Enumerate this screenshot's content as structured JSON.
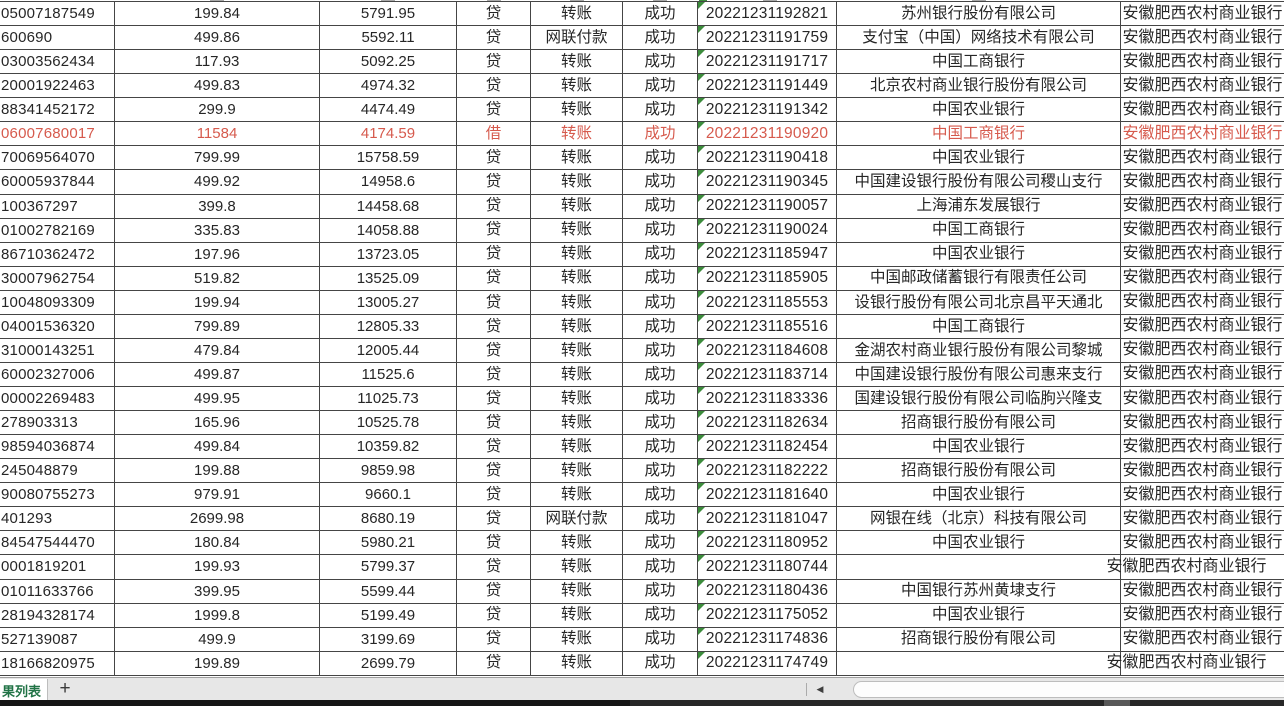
{
  "colors": {
    "text": "#262626",
    "highlight_red": "#d65a4d",
    "gridline": "#454545",
    "cell_flag_triangle_green": "#3c8c3c",
    "sheet_tab_green": "#217346"
  },
  "own_bank_repeated_value": "安徽肥西农村商业银行",
  "table": {
    "rows": [
      {
        "account": "05007187549",
        "amount": "199.84",
        "balance": "5791.95",
        "direction": "贷",
        "method": "转账",
        "status": "成功",
        "time": "20221231192821",
        "bank": "苏州银行股份有限公司",
        "own_bank": "安徽肥西农村商业银行",
        "red": false
      },
      {
        "account": "600690",
        "amount": "499.86",
        "balance": "5592.11",
        "direction": "贷",
        "method": "网联付款",
        "status": "成功",
        "time": "20221231191759",
        "bank": "支付宝（中国）网络技术有限公司",
        "own_bank": "安徽肥西农村商业银行",
        "red": false
      },
      {
        "account": "03003562434",
        "amount": "117.93",
        "balance": "5092.25",
        "direction": "贷",
        "method": "转账",
        "status": "成功",
        "time": "20221231191717",
        "bank": "中国工商银行",
        "own_bank": "安徽肥西农村商业银行",
        "red": false
      },
      {
        "account": "20001922463",
        "amount": "499.83",
        "balance": "4974.32",
        "direction": "贷",
        "method": "转账",
        "status": "成功",
        "time": "20221231191449",
        "bank": "北京农村商业银行股份有限公司",
        "own_bank": "安徽肥西农村商业银行",
        "red": false
      },
      {
        "account": "88341452172",
        "amount": "299.9",
        "balance": "4474.49",
        "direction": "贷",
        "method": "转账",
        "status": "成功",
        "time": "20221231191342",
        "bank": "中国农业银行",
        "own_bank": "安徽肥西农村商业银行",
        "red": false
      },
      {
        "account": "06007680017",
        "amount": "11584",
        "balance": "4174.59",
        "direction": "借",
        "method": "转账",
        "status": "成功",
        "time": "20221231190920",
        "bank": "中国工商银行",
        "own_bank": "安徽肥西农村商业银行",
        "red": true
      },
      {
        "account": "70069564070",
        "amount": "799.99",
        "balance": "15758.59",
        "direction": "贷",
        "method": "转账",
        "status": "成功",
        "time": "20221231190418",
        "bank": "中国农业银行",
        "own_bank": "安徽肥西农村商业银行",
        "red": false
      },
      {
        "account": "60005937844",
        "amount": "499.92",
        "balance": "14958.6",
        "direction": "贷",
        "method": "转账",
        "status": "成功",
        "time": "20221231190345",
        "bank": "中国建设银行股份有限公司稷山支行",
        "own_bank": "安徽肥西农村商业银行",
        "red": false
      },
      {
        "account": "100367297",
        "amount": "399.8",
        "balance": "14458.68",
        "direction": "贷",
        "method": "转账",
        "status": "成功",
        "time": "20221231190057",
        "bank": "上海浦东发展银行",
        "own_bank": "安徽肥西农村商业银行",
        "red": false
      },
      {
        "account": "01002782169",
        "amount": "335.83",
        "balance": "14058.88",
        "direction": "贷",
        "method": "转账",
        "status": "成功",
        "time": "20221231190024",
        "bank": "中国工商银行",
        "own_bank": "安徽肥西农村商业银行",
        "red": false
      },
      {
        "account": "86710362472",
        "amount": "197.96",
        "balance": "13723.05",
        "direction": "贷",
        "method": "转账",
        "status": "成功",
        "time": "20221231185947",
        "bank": "中国农业银行",
        "own_bank": "安徽肥西农村商业银行",
        "red": false
      },
      {
        "account": "30007962754",
        "amount": "519.82",
        "balance": "13525.09",
        "direction": "贷",
        "method": "转账",
        "status": "成功",
        "time": "20221231185905",
        "bank": "中国邮政储蓄银行有限责任公司",
        "own_bank": "安徽肥西农村商业银行",
        "red": false
      },
      {
        "account": "10048093309",
        "amount": "199.94",
        "balance": "13005.27",
        "direction": "贷",
        "method": "转账",
        "status": "成功",
        "time": "20221231185553",
        "bank": "设银行股份有限公司北京昌平天通北",
        "own_bank": "安徽肥西农村商业银行",
        "red": false
      },
      {
        "account": "04001536320",
        "amount": "799.89",
        "balance": "12805.33",
        "direction": "贷",
        "method": "转账",
        "status": "成功",
        "time": "20221231185516",
        "bank": "中国工商银行",
        "own_bank": "安徽肥西农村商业银行",
        "red": false
      },
      {
        "account": "31000143251",
        "amount": "479.84",
        "balance": "12005.44",
        "direction": "贷",
        "method": "转账",
        "status": "成功",
        "time": "20221231184608",
        "bank": "金湖农村商业银行股份有限公司黎城",
        "own_bank": "安徽肥西农村商业银行",
        "red": false
      },
      {
        "account": "60002327006",
        "amount": "499.87",
        "balance": "11525.6",
        "direction": "贷",
        "method": "转账",
        "status": "成功",
        "time": "20221231183714",
        "bank": "中国建设银行股份有限公司惠来支行",
        "own_bank": "安徽肥西农村商业银行",
        "red": false
      },
      {
        "account": "00002269483",
        "amount": "499.95",
        "balance": "11025.73",
        "direction": "贷",
        "method": "转账",
        "status": "成功",
        "time": "20221231183336",
        "bank": "国建设银行股份有限公司临朐兴隆支",
        "own_bank": "安徽肥西农村商业银行",
        "red": false
      },
      {
        "account": "278903313",
        "amount": "165.96",
        "balance": "10525.78",
        "direction": "贷",
        "method": "转账",
        "status": "成功",
        "time": "20221231182634",
        "bank": "招商银行股份有限公司",
        "own_bank": "安徽肥西农村商业银行",
        "red": false
      },
      {
        "account": "98594036874",
        "amount": "499.84",
        "balance": "10359.82",
        "direction": "贷",
        "method": "转账",
        "status": "成功",
        "time": "20221231182454",
        "bank": "中国农业银行",
        "own_bank": "安徽肥西农村商业银行",
        "red": false
      },
      {
        "account": "245048879",
        "amount": "199.88",
        "balance": "9859.98",
        "direction": "贷",
        "method": "转账",
        "status": "成功",
        "time": "20221231182222",
        "bank": "招商银行股份有限公司",
        "own_bank": "安徽肥西农村商业银行",
        "red": false
      },
      {
        "account": "90080755273",
        "amount": "979.91",
        "balance": "9660.1",
        "direction": "贷",
        "method": "转账",
        "status": "成功",
        "time": "20221231181640",
        "bank": "中国农业银行",
        "own_bank": "安徽肥西农村商业银行",
        "red": false
      },
      {
        "account": "401293",
        "amount": "2699.98",
        "balance": "8680.19",
        "direction": "贷",
        "method": "网联付款",
        "status": "成功",
        "time": "20221231181047",
        "bank": "网银在线（北京）科技有限公司",
        "own_bank": "安徽肥西农村商业银行",
        "red": false
      },
      {
        "account": "84547544470",
        "amount": "180.84",
        "balance": "5980.21",
        "direction": "贷",
        "method": "转账",
        "status": "成功",
        "time": "20221231180952",
        "bank": "中国农业银行",
        "own_bank": "安徽肥西农村商业银行",
        "red": false
      },
      {
        "account": "0001819201",
        "amount": "199.93",
        "balance": "5799.37",
        "direction": "贷",
        "method": "转账",
        "status": "成功",
        "time": "20221231180744",
        "bank": "",
        "own_bank": "安徽肥西农村商业银行",
        "red": false
      },
      {
        "account": "01011633766",
        "amount": "399.95",
        "balance": "5599.44",
        "direction": "贷",
        "method": "转账",
        "status": "成功",
        "time": "20221231180436",
        "bank": "中国银行苏州黄埭支行",
        "own_bank": "安徽肥西农村商业银行",
        "red": false
      },
      {
        "account": "28194328174",
        "amount": "1999.8",
        "balance": "5199.49",
        "direction": "贷",
        "method": "转账",
        "status": "成功",
        "time": "20221231175052",
        "bank": "中国农业银行",
        "own_bank": "安徽肥西农村商业银行",
        "red": false
      },
      {
        "account": "527139087",
        "amount": "499.9",
        "balance": "3199.69",
        "direction": "贷",
        "method": "转账",
        "status": "成功",
        "time": "20221231174836",
        "bank": "招商银行股份有限公司",
        "own_bank": "安徽肥西农村商业银行",
        "red": false
      },
      {
        "account": "18166820975",
        "amount": "199.89",
        "balance": "2699.79",
        "direction": "贷",
        "method": "转账",
        "status": "成功",
        "time": "20221231174749",
        "bank": "",
        "own_bank": "安徽肥西农村商业银行",
        "red": false
      }
    ]
  },
  "sheet_bar": {
    "tab_label": "果列表",
    "add_label": "+"
  }
}
